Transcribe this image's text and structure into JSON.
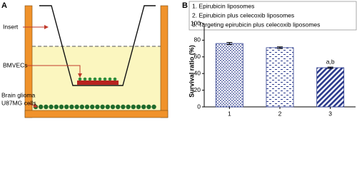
{
  "panel_a": {
    "label": "A",
    "insert": "Insert",
    "bmvecs": "BMVECs",
    "glioma": [
      "Brain glioma",
      "U87MG cells"
    ]
  },
  "chart_data": {
    "type": "bar",
    "panel_label": "B",
    "y_label": "Survival ratio (%)",
    "legend": [
      "1. Epirubicin liposomes",
      "2. Epirubicin plus celecoxib liposomes",
      "3. Targeting epirubicin plus celecoxib liposomes"
    ],
    "categories": [
      "1",
      "2",
      "3"
    ],
    "values": [
      76,
      71,
      47
    ],
    "errors": [
      1.2,
      1,
      0.8
    ],
    "annotation_labels": [
      null,
      null,
      "a,b"
    ],
    "color": "#2b3a8c",
    "ylim": [
      0,
      100
    ],
    "yticks": [
      0,
      20,
      40,
      60,
      80,
      100
    ]
  }
}
